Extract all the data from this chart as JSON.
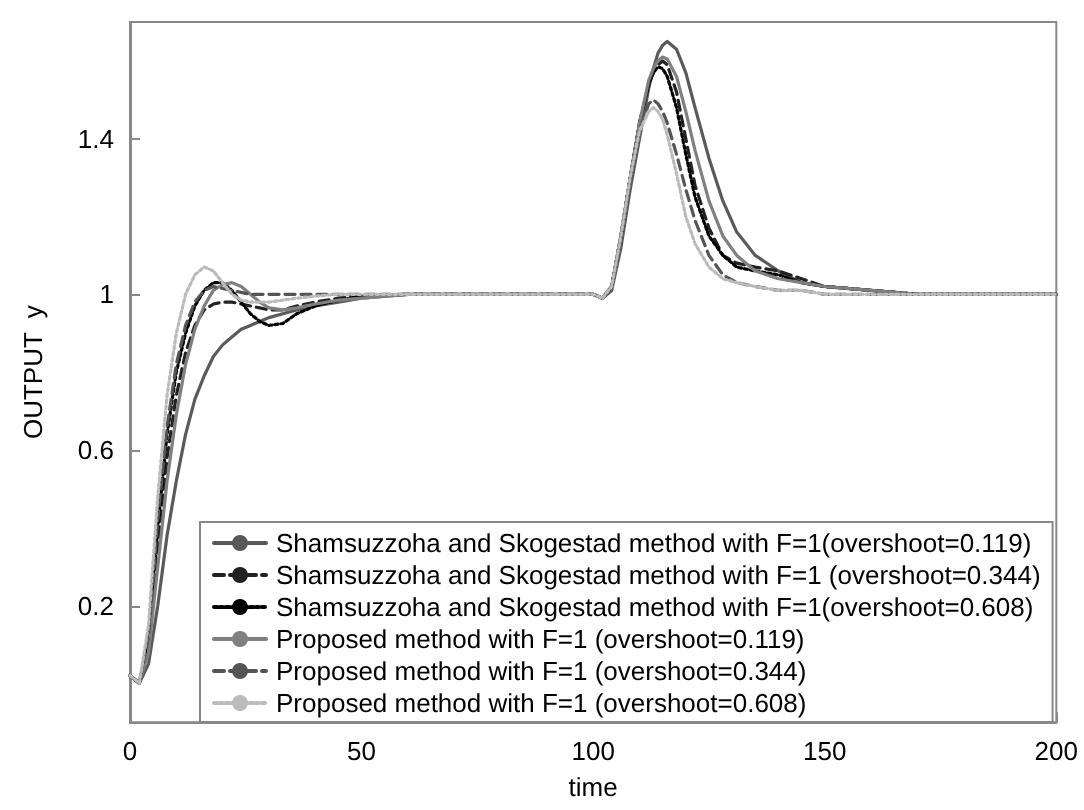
{
  "chart_data": {
    "type": "line",
    "xlabel": "time",
    "ylabel": "OUTPUT  y",
    "x": [
      0,
      2,
      4,
      6,
      8,
      10,
      12,
      14,
      16,
      18,
      20,
      22,
      24,
      26,
      28,
      30,
      33,
      36,
      40,
      45,
      50,
      60,
      70,
      80,
      90,
      100,
      102,
      104,
      106,
      108,
      110,
      112,
      113,
      114,
      115,
      116,
      118,
      120,
      122,
      125,
      128,
      131,
      135,
      140,
      145,
      150,
      160,
      170,
      180,
      190,
      200
    ],
    "series": [
      {
        "name": "Shamsuzzoha and Skogestad method with F=1(overshoot=0.119)",
        "color": "#5a5a5a",
        "line_style": "solid",
        "values": [
          0.02,
          0,
          0.05,
          0.2,
          0.38,
          0.52,
          0.64,
          0.73,
          0.79,
          0.84,
          0.87,
          0.89,
          0.91,
          0.92,
          0.93,
          0.94,
          0.95,
          0.96,
          0.97,
          0.98,
          0.99,
          1,
          1,
          1,
          1,
          1,
          0.99,
          1.01,
          1.12,
          1.27,
          1.4,
          1.53,
          1.58,
          1.62,
          1.64,
          1.65,
          1.63,
          1.57,
          1.48,
          1.35,
          1.24,
          1.16,
          1.1,
          1.06,
          1.03,
          1.02,
          1.01,
          1,
          1,
          1,
          1
        ]
      },
      {
        "name": "Shamsuzzoha and Skogestad method with F=1 (overshoot=0.344)",
        "color": "#222222",
        "line_style": "dashed",
        "values": [
          0.02,
          0,
          0.1,
          0.35,
          0.58,
          0.74,
          0.85,
          0.92,
          0.96,
          0.975,
          0.98,
          0.98,
          0.975,
          0.97,
          0.965,
          0.96,
          0.96,
          0.97,
          0.98,
          0.99,
          0.995,
          1,
          1,
          1,
          1,
          1,
          0.99,
          1.02,
          1.15,
          1.3,
          1.44,
          1.54,
          1.57,
          1.59,
          1.6,
          1.59,
          1.52,
          1.4,
          1.28,
          1.17,
          1.1,
          1.08,
          1.07,
          1.06,
          1.04,
          1.02,
          1.01,
          1,
          1,
          1,
          1
        ]
      },
      {
        "name": "Shamsuzzoha and Skogestad method with F=1(overshoot=0.608)",
        "color": "#000000",
        "line_style": "dotted",
        "values": [
          0.02,
          0,
          0.12,
          0.4,
          0.64,
          0.8,
          0.9,
          0.97,
          1.01,
          1.03,
          1.03,
          1.01,
          0.98,
          0.95,
          0.93,
          0.92,
          0.925,
          0.95,
          0.97,
          0.985,
          0.995,
          1,
          1,
          1,
          1,
          1,
          0.99,
          1.02,
          1.15,
          1.3,
          1.44,
          1.54,
          1.57,
          1.585,
          1.58,
          1.56,
          1.48,
          1.36,
          1.25,
          1.15,
          1.1,
          1.07,
          1.06,
          1.05,
          1.03,
          1.02,
          1.01,
          1,
          1,
          1,
          1
        ]
      },
      {
        "name": "Proposed method with F=1 (overshoot=0.119)",
        "color": "#808080",
        "line_style": "solid",
        "values": [
          0.02,
          0,
          0.08,
          0.3,
          0.52,
          0.69,
          0.82,
          0.91,
          0.97,
          1.01,
          1.025,
          1.03,
          1.02,
          1,
          0.98,
          0.965,
          0.96,
          0.965,
          0.975,
          0.985,
          0.99,
          1,
          1,
          1,
          1,
          1,
          0.99,
          1.02,
          1.15,
          1.3,
          1.44,
          1.55,
          1.58,
          1.6,
          1.61,
          1.605,
          1.56,
          1.47,
          1.37,
          1.24,
          1.15,
          1.1,
          1.06,
          1.04,
          1.03,
          1.02,
          1.01,
          1,
          1,
          1,
          1
        ]
      },
      {
        "name": "Proposed method with F=1 (overshoot=0.344)",
        "color": "#555555",
        "line_style": "dashed",
        "values": [
          0.02,
          0,
          0.12,
          0.42,
          0.66,
          0.82,
          0.92,
          0.98,
          1.01,
          1.02,
          1.015,
          1.01,
          1.005,
          1,
          1,
          1,
          1,
          1,
          1,
          1,
          1,
          1,
          1,
          1,
          1,
          1,
          0.99,
          1.02,
          1.15,
          1.3,
          1.42,
          1.49,
          1.5,
          1.49,
          1.47,
          1.44,
          1.36,
          1.27,
          1.19,
          1.1,
          1.05,
          1.03,
          1.02,
          1.01,
          1.01,
          1,
          1,
          1,
          1,
          1,
          1
        ]
      },
      {
        "name": "Proposed method with F=1 (overshoot=0.608)",
        "color": "#bbbbbb",
        "line_style": "dotted",
        "values": [
          0.02,
          0,
          0.15,
          0.48,
          0.74,
          0.9,
          1,
          1.05,
          1.07,
          1.06,
          1.03,
          1,
          0.985,
          0.98,
          0.98,
          0.98,
          0.985,
          0.99,
          0.995,
          1,
          1,
          1,
          1,
          1,
          1,
          1,
          0.99,
          1.02,
          1.15,
          1.3,
          1.42,
          1.47,
          1.48,
          1.47,
          1.45,
          1.41,
          1.31,
          1.2,
          1.13,
          1.07,
          1.04,
          1.03,
          1.02,
          1.01,
          1.01,
          1,
          1,
          1,
          1,
          1,
          1
        ]
      }
    ],
    "xlim": [
      0,
      200
    ],
    "xticks": [
      0,
      50,
      100,
      150,
      200
    ],
    "ylim": [
      -0.1,
      1.7
    ],
    "yticks": [
      0.2,
      0.6,
      1,
      1.4
    ],
    "grid": false,
    "legend": "bottom right",
    "marker": "none"
  }
}
